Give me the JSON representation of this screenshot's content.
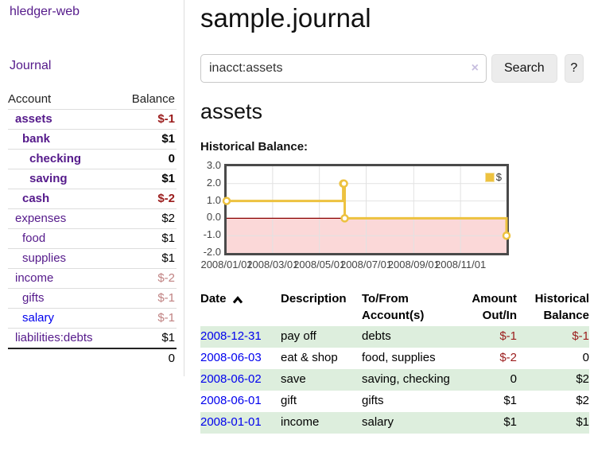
{
  "sidebar": {
    "brand": "hledger-web",
    "nav_journal": "Journal",
    "accounts": {
      "header_account": "Account",
      "header_balance": "Balance",
      "rows": [
        {
          "name": "assets",
          "balance": "$-1",
          "depth": 1,
          "bold": true,
          "balance_tone": "negative"
        },
        {
          "name": "bank",
          "balance": "$1",
          "depth": 2,
          "bold": true,
          "balance_tone": "normal"
        },
        {
          "name": "checking",
          "balance": "0",
          "depth": 3,
          "bold": true,
          "balance_tone": "normal"
        },
        {
          "name": "saving",
          "balance": "$1",
          "depth": 3,
          "bold": true,
          "balance_tone": "normal"
        },
        {
          "name": "cash",
          "balance": "$-2",
          "depth": 2,
          "bold": true,
          "balance_tone": "negative"
        },
        {
          "name": "expenses",
          "balance": "$2",
          "depth": 1,
          "bold": false,
          "balance_tone": "normal"
        },
        {
          "name": "food",
          "balance": "$1",
          "depth": 2,
          "bold": false,
          "balance_tone": "normal"
        },
        {
          "name": "supplies",
          "balance": "$1",
          "depth": 2,
          "bold": false,
          "balance_tone": "normal"
        },
        {
          "name": "income",
          "balance": "$-2",
          "depth": 1,
          "bold": false,
          "balance_tone": "negative-soft"
        },
        {
          "name": "gifts",
          "balance": "$-1",
          "depth": 2,
          "bold": false,
          "balance_tone": "negative-soft"
        },
        {
          "name": "salary",
          "balance": "$-1",
          "depth": 2,
          "bold": false,
          "balance_tone": "negative-soft",
          "link_color": "blue"
        },
        {
          "name": "liabilities:debts",
          "balance": "$1",
          "depth": 1,
          "bold": false,
          "balance_tone": "normal"
        }
      ],
      "total": "0"
    }
  },
  "main": {
    "title": "sample.journal",
    "search": {
      "value": "inacct:assets",
      "clear_icon": "×",
      "search_button": "Search",
      "help_button": "?"
    },
    "account_heading": "assets",
    "chart_heading": "Historical Balance:"
  },
  "chart_data": {
    "type": "line",
    "style": "step",
    "title": "Historical Balance",
    "series": [
      {
        "name": "$",
        "color": "#edc240",
        "points": [
          [
            "2008-01-01",
            1
          ],
          [
            "2008-06-01",
            2
          ],
          [
            "2008-06-02",
            2
          ],
          [
            "2008-06-03",
            0
          ],
          [
            "2008-12-31",
            -1
          ]
        ]
      }
    ],
    "ylim": [
      -2,
      3
    ],
    "yticks": [
      "3.0",
      "2.0",
      "1.0",
      "0.0",
      "-1.0",
      "-2.0"
    ],
    "xticks": [
      "2008/01/01",
      "2008/03/01",
      "2008/05/01",
      "2008/07/01",
      "2008/09/01",
      "2008/11/01"
    ],
    "legend_label": "$",
    "legend_position": "top-right",
    "grid": true,
    "negative_region_color": "#fbd8d8",
    "zero_line_color": "#8b0000",
    "grid_color": "#e2e2e2",
    "border_color": "#4a4a4a"
  },
  "transactions": {
    "headers": {
      "date": "Date",
      "description": "Description",
      "accounts": "To/From Account(s)",
      "amount": "Amount Out/In",
      "balance": "Historical Balance"
    },
    "sort": {
      "column": "date",
      "direction": "ascending"
    },
    "rows": [
      {
        "date": "2008-12-31",
        "description": "pay off",
        "accounts": "debts",
        "amount": "$-1",
        "balance": "$-1",
        "amount_tone": "negative",
        "balance_tone": "negative"
      },
      {
        "date": "2008-06-03",
        "description": "eat & shop",
        "accounts": "food, supplies",
        "amount": "$-2",
        "balance": "0",
        "amount_tone": "negative",
        "balance_tone": "normal"
      },
      {
        "date": "2008-06-02",
        "description": "save",
        "accounts": "saving, checking",
        "amount": "0",
        "balance": "$2",
        "amount_tone": "normal",
        "balance_tone": "normal"
      },
      {
        "date": "2008-06-01",
        "description": "gift",
        "accounts": "gifts",
        "amount": "$1",
        "balance": "$2",
        "amount_tone": "normal",
        "balance_tone": "normal"
      },
      {
        "date": "2008-01-01",
        "description": "income",
        "accounts": "salary",
        "amount": "$1",
        "balance": "$1",
        "amount_tone": "normal",
        "balance_tone": "normal"
      }
    ]
  }
}
